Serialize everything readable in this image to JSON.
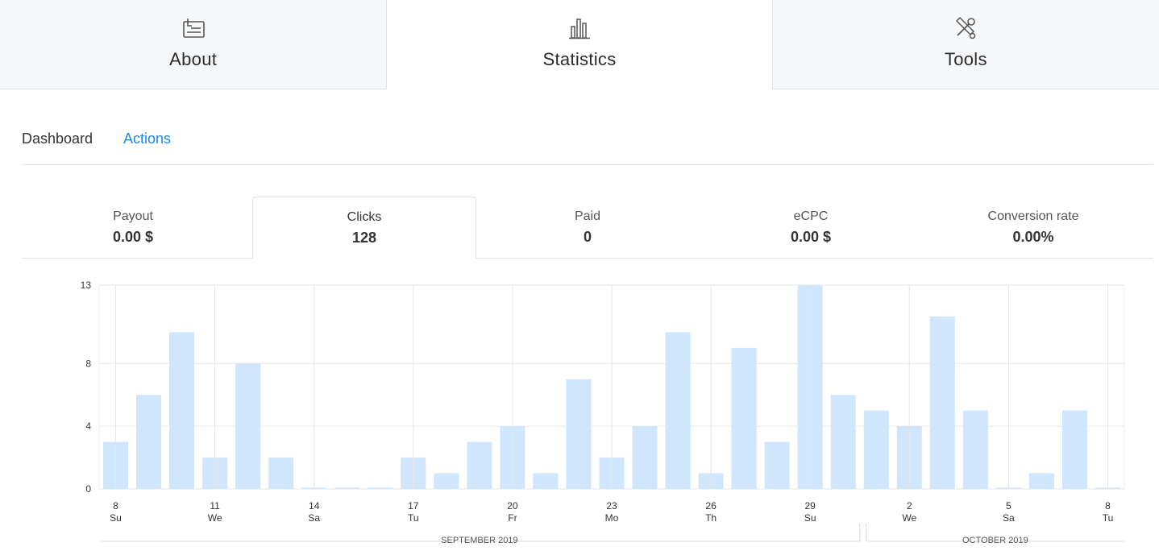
{
  "top_tabs": [
    {
      "label": "About",
      "icon": "id-card-icon",
      "active": false
    },
    {
      "label": "Statistics",
      "icon": "bar-chart-icon",
      "active": true
    },
    {
      "label": "Tools",
      "icon": "tools-icon",
      "active": false
    }
  ],
  "sub_nav": {
    "dashboard": "Dashboard",
    "actions": "Actions"
  },
  "colors": {
    "accent": "#1e88e5",
    "bar": "#cfe6fd",
    "grid": "#e6e6e6"
  },
  "metrics": [
    {
      "label": "Payout",
      "value": "0.00 $"
    },
    {
      "label": "Clicks",
      "value": "128"
    },
    {
      "label": "Paid",
      "value": "0"
    },
    {
      "label": "eCPC",
      "value": "0.00 $"
    },
    {
      "label": "Conversion rate",
      "value": "0.00%"
    }
  ],
  "chart_data": {
    "type": "bar",
    "title": "",
    "xlabel": "",
    "ylabel": "",
    "ylim": [
      0,
      13
    ],
    "y_ticks": [
      0,
      4,
      8,
      13
    ],
    "grid": true,
    "categories": [
      "2019-09-08",
      "2019-09-09",
      "2019-09-10",
      "2019-09-11",
      "2019-09-12",
      "2019-09-13",
      "2019-09-14",
      "2019-09-15",
      "2019-09-16",
      "2019-09-17",
      "2019-09-18",
      "2019-09-19",
      "2019-09-20",
      "2019-09-21",
      "2019-09-22",
      "2019-09-23",
      "2019-09-24",
      "2019-09-25",
      "2019-09-26",
      "2019-09-27",
      "2019-09-28",
      "2019-09-29",
      "2019-09-30",
      "2019-10-01",
      "2019-10-02",
      "2019-10-03",
      "2019-10-04",
      "2019-10-05",
      "2019-10-06",
      "2019-10-07",
      "2019-10-08"
    ],
    "values": [
      3,
      6,
      10,
      2,
      8,
      2,
      0,
      0,
      0,
      2,
      1,
      3,
      4,
      1,
      7,
      2,
      4,
      10,
      1,
      9,
      3,
      13,
      6,
      5,
      4,
      11,
      5,
      0,
      1,
      5,
      0
    ],
    "x_tick_labels": [
      {
        "day": "8",
        "weekday": "Su"
      },
      {
        "day": "11",
        "weekday": "We"
      },
      {
        "day": "14",
        "weekday": "Sa"
      },
      {
        "day": "17",
        "weekday": "Tu"
      },
      {
        "day": "20",
        "weekday": "Fr"
      },
      {
        "day": "23",
        "weekday": "Mo"
      },
      {
        "day": "26",
        "weekday": "Th"
      },
      {
        "day": "29",
        "weekday": "Su"
      },
      {
        "day": "2",
        "weekday": "We"
      },
      {
        "day": "5",
        "weekday": "Sa"
      },
      {
        "day": "8",
        "weekday": "Tu"
      }
    ],
    "months": [
      "SEPTEMBER 2019",
      "OCTOBER 2019"
    ]
  }
}
